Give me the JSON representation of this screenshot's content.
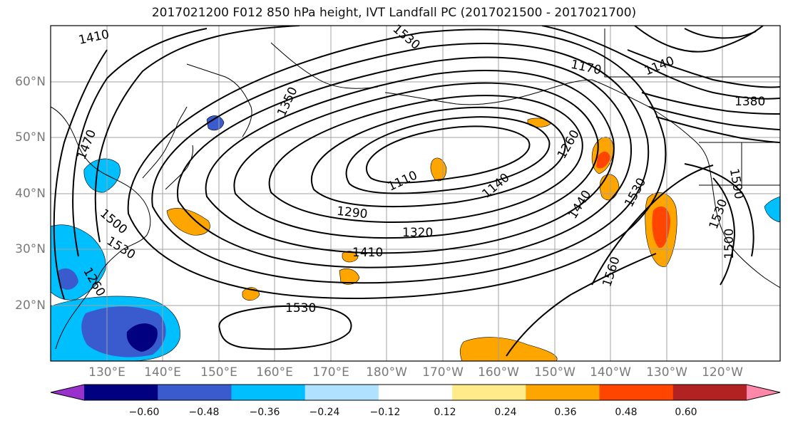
{
  "title": "2017021200 F012 850 hPa height, IVT Landfall PC (2017021500 - 2017021700)",
  "lon_labels": [
    "130°E",
    "140°E",
    "150°E",
    "160°E",
    "170°E",
    "180°W",
    "170°W",
    "160°W",
    "150°W",
    "140°W",
    "130°W",
    "120°W"
  ],
  "lat_labels": [
    "60°N",
    "50°N",
    "40°N",
    "30°N",
    "20°N"
  ],
  "contour_labels": [
    "1410",
    "1350",
    "1470",
    "1500",
    "1530",
    "1260",
    "1110",
    "1140",
    "1290",
    "1320",
    "1410",
    "1530",
    "1170",
    "1140",
    "1380",
    "1260",
    "1440",
    "1530",
    "1560",
    "1590",
    "1530",
    "1500",
    "1530"
  ],
  "colorbar": {
    "ticks": [
      "−0.60",
      "−0.48",
      "−0.36",
      "−0.24",
      "−0.12",
      "0.12",
      "0.24",
      "0.36",
      "0.48",
      "0.60"
    ],
    "colors": [
      "#9932cc",
      "#000080",
      "#3a5bcd",
      "#00bfff",
      "#b0e2ff",
      "#ffffff",
      "#ffeb8a",
      "#ffa500",
      "#ff4500",
      "#b22222",
      "#ff88aa"
    ]
  }
}
